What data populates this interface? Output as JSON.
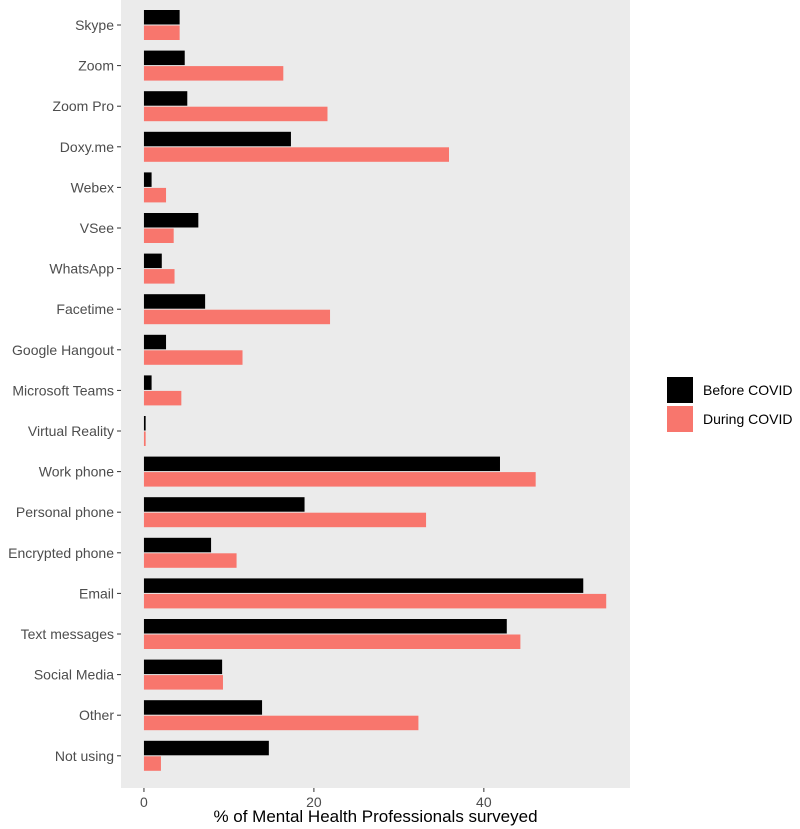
{
  "chart_data": {
    "type": "bar",
    "orientation": "horizontal",
    "categories": [
      "Skype",
      "Zoom",
      "Zoom Pro",
      "Doxy.me",
      "Webex",
      "VSee",
      "WhatsApp",
      "Facetime",
      "Google Hangout",
      "Microsoft Teams",
      "Virtual Reality",
      "Work phone",
      "Personal phone",
      "Encrypted phone",
      "Email",
      "Text messages",
      "Social Media",
      "Other",
      "Not using"
    ],
    "series": [
      {
        "name": "Before COVID",
        "color": "#000000",
        "values": [
          4.2,
          4.8,
          5.1,
          17.3,
          0.9,
          6.4,
          2.1,
          7.2,
          2.6,
          0.9,
          0.2,
          41.9,
          18.9,
          7.9,
          51.7,
          42.7,
          9.2,
          13.9,
          14.7
        ]
      },
      {
        "name": "During COVID",
        "color": "#F8766D",
        "values": [
          4.2,
          16.4,
          21.6,
          35.9,
          2.6,
          3.5,
          3.6,
          21.9,
          11.6,
          4.4,
          0.2,
          46.1,
          33.2,
          10.9,
          54.4,
          44.3,
          9.3,
          32.3,
          2.0
        ]
      }
    ],
    "xlabel": "% of Mental Health Professionals surveyed",
    "ylabel": "",
    "xlim": [
      -2.7,
      57.2
    ],
    "xticks": [
      0,
      20,
      40
    ],
    "grid": false,
    "panel_background": "#EBEBEB",
    "legend_position": "right"
  }
}
